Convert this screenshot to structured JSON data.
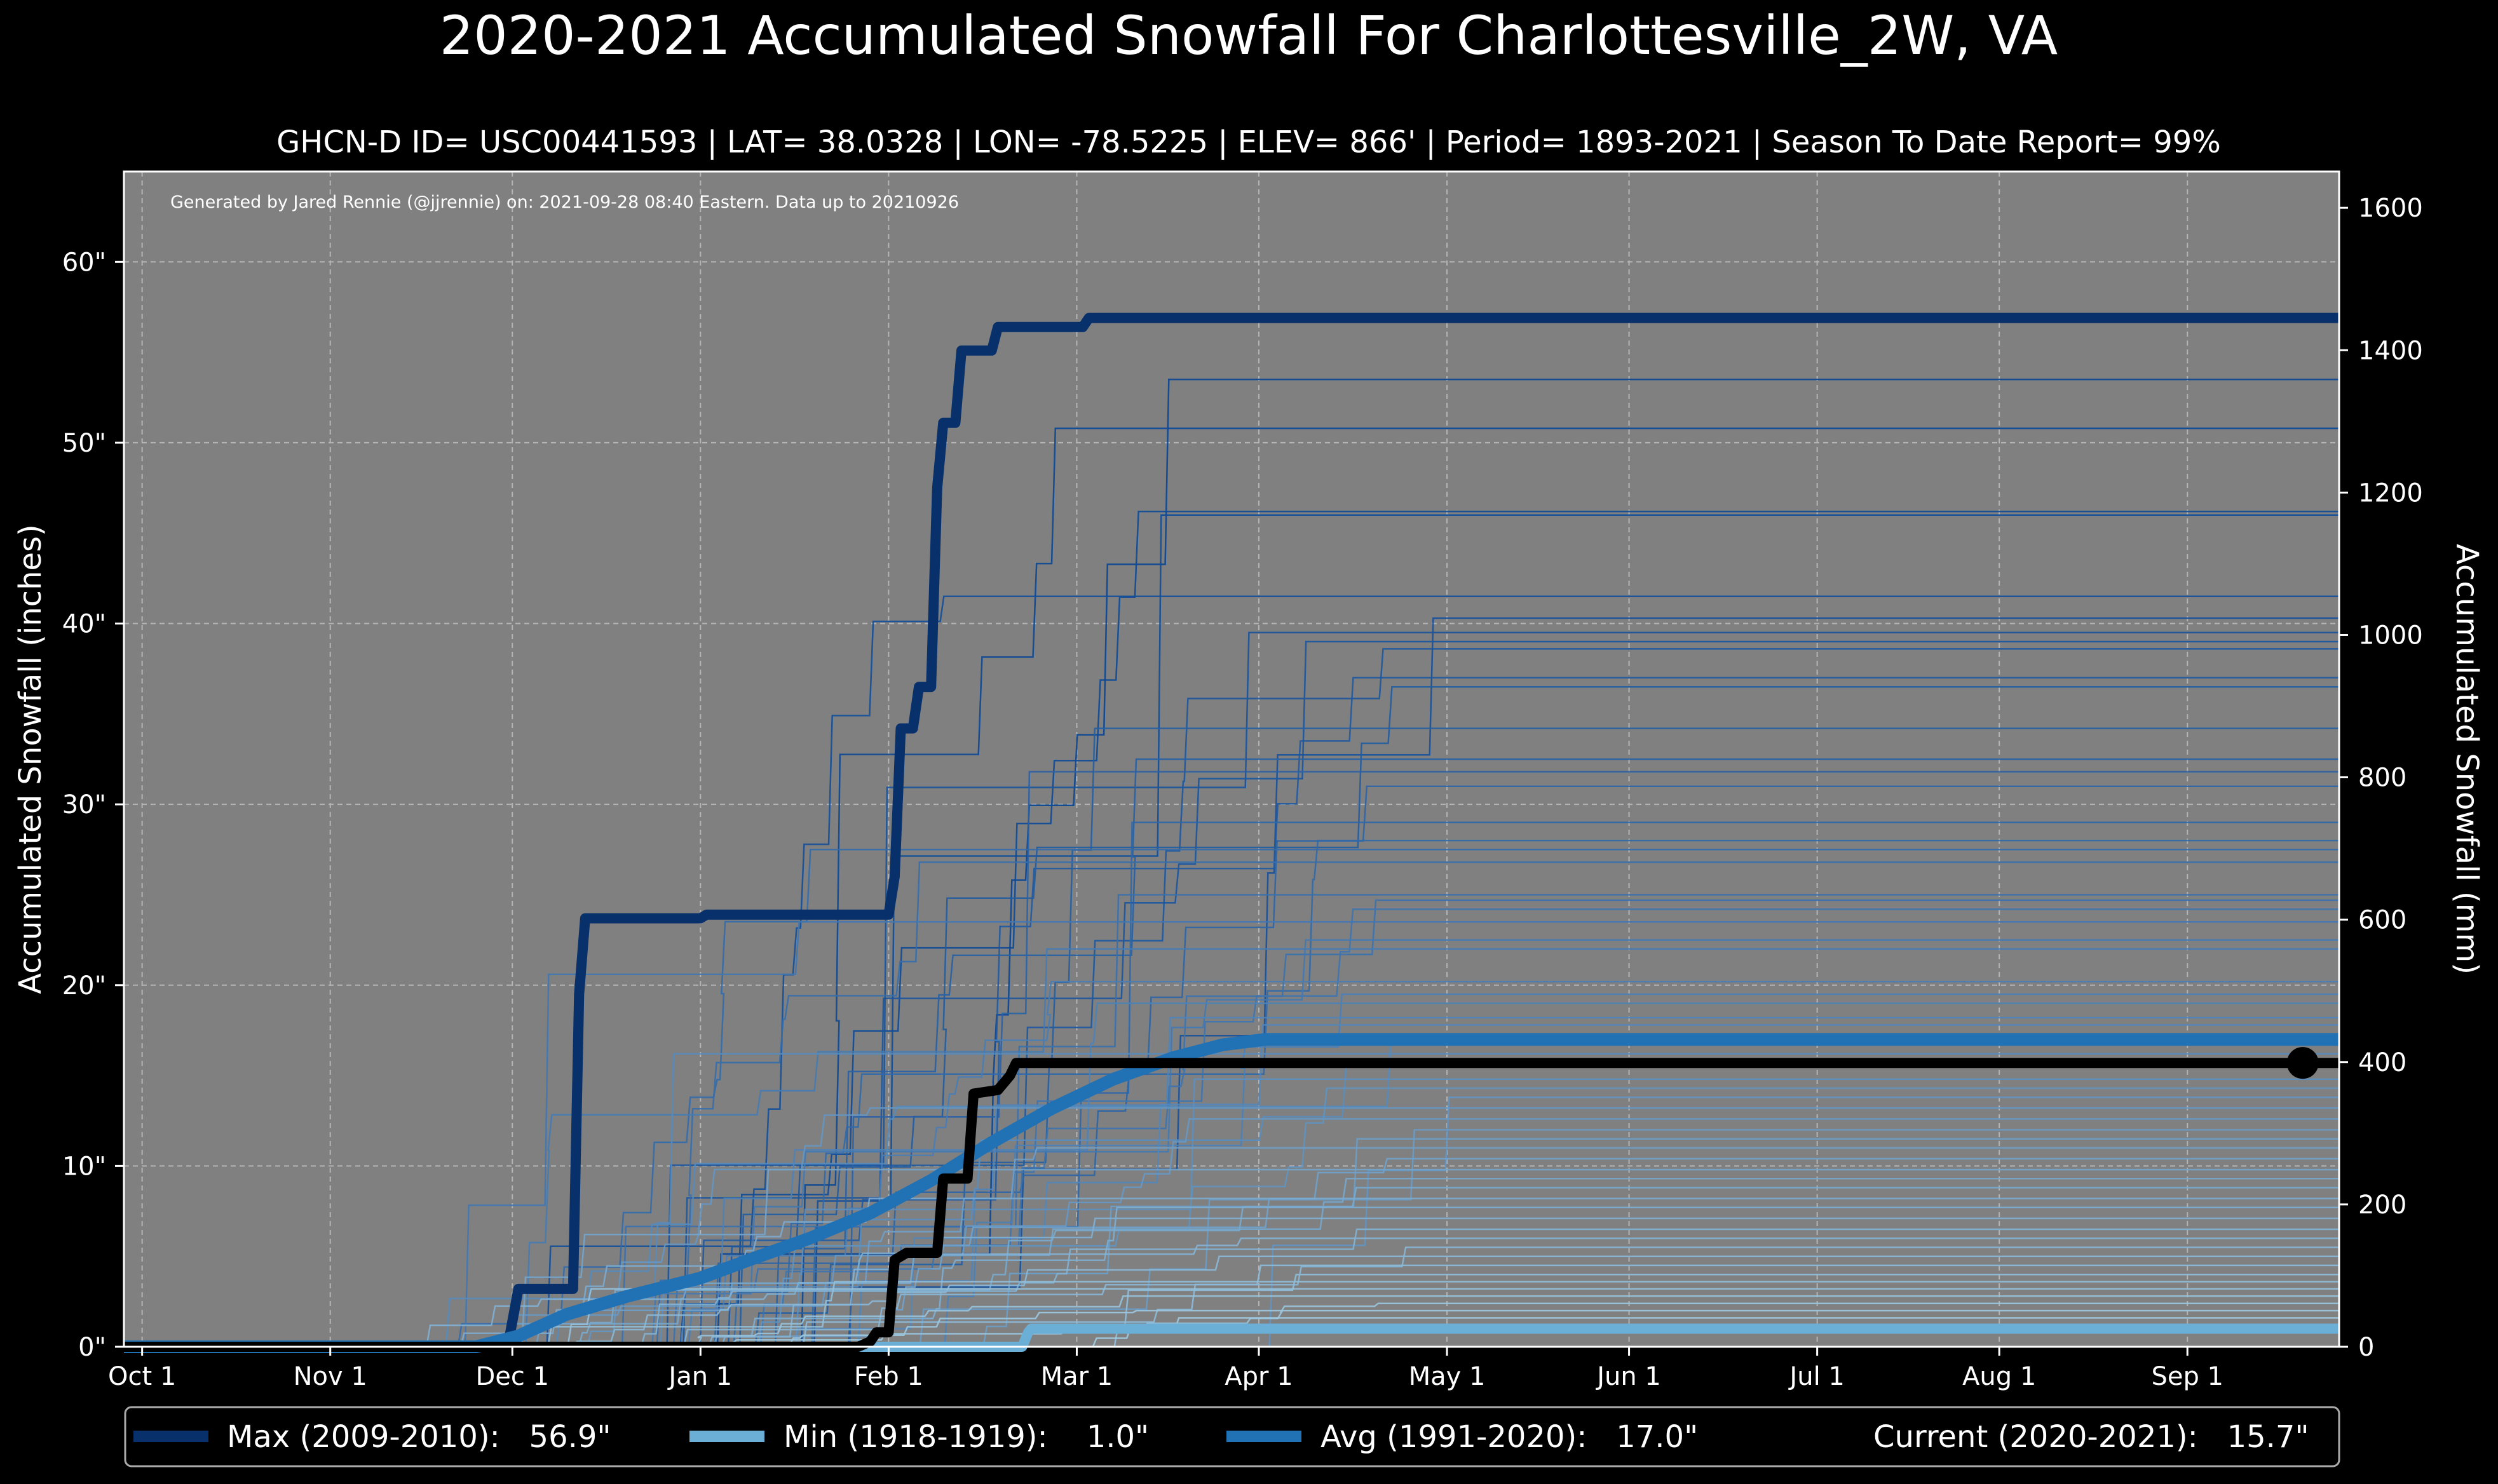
{
  "chart_data": {
    "type": "line",
    "title": "2020-2021 Accumulated Snowfall For Charlottesville_2W, VA",
    "subtitle": "GHCN-D ID= USC00441593 | LAT= 38.0328 | LON= -78.5225 | ELEV= 866' | Period= 1893-2021 | Season To Date Report= 99%",
    "credit": "Generated by Jared Rennie (@jjrennie) on: 2021-09-28 08:40 Eastern. Data up to 20210926",
    "ylabel": "Accumulated Snowfall (inches)",
    "y2label": "Accumulated Snowfall (mm)",
    "x_unit": "day of season (0 = Oct 1)",
    "xlim": [
      -3,
      362
    ],
    "ylim": [
      0,
      65
    ],
    "y2lim": [
      0,
      1651
    ],
    "grid": true,
    "legend_position": "bottom",
    "x_ticks": [
      {
        "day": 0,
        "label": "Oct 1"
      },
      {
        "day": 31,
        "label": "Nov 1"
      },
      {
        "day": 61,
        "label": "Dec 1"
      },
      {
        "day": 92,
        "label": "Jan 1"
      },
      {
        "day": 123,
        "label": "Feb 1"
      },
      {
        "day": 154,
        "label": "Mar 1"
      },
      {
        "day": 184,
        "label": "Apr 1"
      },
      {
        "day": 215,
        "label": "May 1"
      },
      {
        "day": 245,
        "label": "Jun 1"
      },
      {
        "day": 276,
        "label": "Jul 1"
      },
      {
        "day": 306,
        "label": "Aug 1"
      },
      {
        "day": 337,
        "label": "Sep 1"
      }
    ],
    "y_ticks": [
      {
        "value": 0,
        "label": "0\""
      },
      {
        "value": 10,
        "label": "10\""
      },
      {
        "value": 20,
        "label": "20\""
      },
      {
        "value": 30,
        "label": "30\""
      },
      {
        "value": 40,
        "label": "40\""
      },
      {
        "value": 50,
        "label": "50\""
      },
      {
        "value": 60,
        "label": "60\""
      }
    ],
    "y2_ticks": [
      {
        "value": 0,
        "label": "0"
      },
      {
        "value": 200,
        "label": "200"
      },
      {
        "value": 400,
        "label": "400"
      },
      {
        "value": 600,
        "label": "600"
      },
      {
        "value": 800,
        "label": "800"
      },
      {
        "value": 1000,
        "label": "1000"
      },
      {
        "value": 1200,
        "label": "1200"
      },
      {
        "value": 1400,
        "label": "1400"
      },
      {
        "value": 1600,
        "label": "1600"
      }
    ],
    "background_seasons_final": [
      53.5,
      50.8,
      46.2,
      46.0,
      41.5,
      40.3,
      39.5,
      39.0,
      38.6,
      37.0,
      36.5,
      34.2,
      32.5,
      31.8,
      31.0,
      29.0,
      28.0,
      27.5,
      26.8,
      25.0,
      24.7,
      24.2,
      23.5,
      22.5,
      22.0,
      20.2,
      19.5,
      19.0,
      18.2,
      17.8,
      16.8,
      16.2,
      15.5,
      14.8,
      14.3,
      13.8,
      13.2,
      12.6,
      12.0,
      11.5,
      11.0,
      10.4,
      9.8,
      9.3,
      8.8,
      8.2,
      7.7,
      7.1,
      6.5,
      6.0,
      5.5,
      5.0,
      4.5,
      4.0,
      3.6,
      3.2,
      2.8,
      2.4,
      2.0,
      1.6
    ],
    "series": [
      {
        "name": "Max (2009-2010)",
        "color": "#08306b",
        "points": [
          [
            -3,
            0
          ],
          [
            60,
            0
          ],
          [
            60.5,
            0.5
          ],
          [
            62,
            3.2
          ],
          [
            71,
            3.2
          ],
          [
            72,
            19.5
          ],
          [
            73,
            23.7
          ],
          [
            92,
            23.7
          ],
          [
            93,
            23.9
          ],
          [
            123,
            23.9
          ],
          [
            124,
            26
          ],
          [
            125,
            34.2
          ],
          [
            127,
            34.2
          ],
          [
            128,
            36.5
          ],
          [
            130,
            36.5
          ],
          [
            131,
            47.5
          ],
          [
            132,
            51.1
          ],
          [
            134,
            51.1
          ],
          [
            135,
            55.1
          ],
          [
            140,
            55.1
          ],
          [
            141,
            56.4
          ],
          [
            155,
            56.4
          ],
          [
            156,
            56.9
          ],
          [
            362,
            56.9
          ]
        ]
      },
      {
        "name": "Min (1918-1919)",
        "color": "#6baed6",
        "points": [
          [
            -3,
            0
          ],
          [
            145,
            0
          ],
          [
            146,
            0.8
          ],
          [
            146.5,
            1.0
          ],
          [
            362,
            1.0
          ]
        ]
      },
      {
        "name": "Avg (1991-2020)",
        "color": "#2171b5",
        "points": [
          [
            -3,
            0
          ],
          [
            55,
            0
          ],
          [
            62,
            0.6
          ],
          [
            70,
            1.8
          ],
          [
            80,
            2.8
          ],
          [
            92,
            3.8
          ],
          [
            100,
            4.8
          ],
          [
            110,
            6.0
          ],
          [
            120,
            7.4
          ],
          [
            130,
            9.2
          ],
          [
            140,
            11.3
          ],
          [
            150,
            13.2
          ],
          [
            160,
            14.8
          ],
          [
            170,
            16.0
          ],
          [
            178,
            16.7
          ],
          [
            185,
            17.0
          ],
          [
            362,
            17.0
          ]
        ]
      },
      {
        "name": "Current (2020-2021)",
        "color": "#000000",
        "points": [
          [
            -3,
            0
          ],
          [
            118,
            0
          ],
          [
            120,
            0.3
          ],
          [
            121,
            0.8
          ],
          [
            123,
            0.8
          ],
          [
            124,
            4.8
          ],
          [
            126,
            5.2
          ],
          [
            131,
            5.2
          ],
          [
            132,
            9.3
          ],
          [
            136,
            9.3
          ],
          [
            137,
            14.0
          ],
          [
            141,
            14.2
          ],
          [
            143,
            15.0
          ],
          [
            144,
            15.7
          ],
          [
            362,
            15.7
          ]
        ]
      }
    ],
    "current_marker": {
      "day": 356,
      "value": 15.7
    },
    "legend": [
      {
        "label": "Max (2009-2010):   56.9\"",
        "color": "#08306b"
      },
      {
        "label": "Min (1918-1919):    1.0\"",
        "color": "#6baed6"
      },
      {
        "label": "Avg (1991-2020):   17.0\"",
        "color": "#2171b5"
      },
      {
        "label": "Current (2020-2021):   15.7\"",
        "color": "#000000"
      }
    ]
  }
}
